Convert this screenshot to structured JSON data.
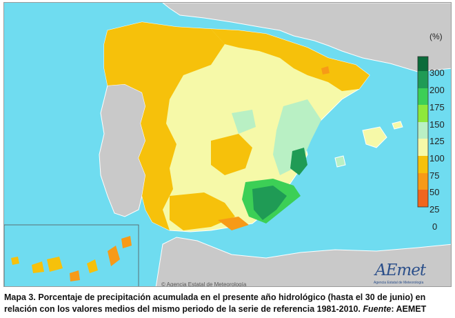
{
  "legend": {
    "unit": "(%)",
    "classes": [
      {
        "label": "300",
        "color": "#0b6b3a"
      },
      {
        "label": "200",
        "color": "#1f9b55"
      },
      {
        "label": "175",
        "color": "#3ccf56"
      },
      {
        "label": "150",
        "color": "#8ee83c"
      },
      {
        "label": "125",
        "color": "#b9f0c4"
      },
      {
        "label": "100",
        "color": "#f6f9a8"
      },
      {
        "label": "75",
        "color": "#f6c10b"
      },
      {
        "label": "50",
        "color": "#f79a17"
      },
      {
        "label": "25",
        "color": "#f0661e"
      },
      {
        "label": "0",
        "color": "#ffffff"
      }
    ]
  },
  "logo": {
    "text": "AEmet",
    "subtext": "Agencia Estatal de Meteorología"
  },
  "credit": "© Agencia Estatal de Meteorología",
  "caption": {
    "prefix": "Mapa 3. Porcentaje de precipitación acumulada en el presente año hidrológico (hasta el 30 de junio) en relación con los valores medios del mismo periodo de la serie de referencia 1981-2010. ",
    "source_label": "Fuente",
    "source_value": ": AEMET"
  },
  "colors": {
    "sea": "#6fdcf0",
    "neighbor_land": "#c9c9c9",
    "border": "#ffffff"
  }
}
